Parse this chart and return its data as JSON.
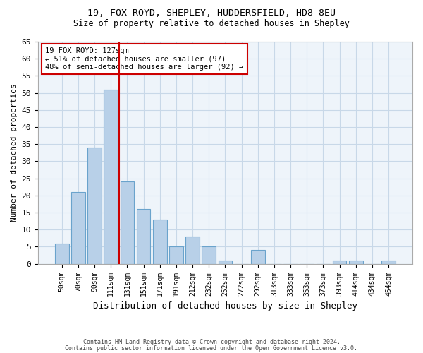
{
  "title1": "19, FOX ROYD, SHEPLEY, HUDDERSFIELD, HD8 8EU",
  "title2": "Size of property relative to detached houses in Shepley",
  "xlabel": "Distribution of detached houses by size in Shepley",
  "ylabel": "Number of detached properties",
  "bar_values": [
    6,
    21,
    34,
    51,
    24,
    16,
    13,
    5,
    8,
    5,
    1,
    0,
    4,
    0,
    0,
    0,
    0,
    1,
    1,
    0,
    1
  ],
  "categories": [
    "50sqm",
    "70sqm",
    "90sqm",
    "111sqm",
    "131sqm",
    "151sqm",
    "171sqm",
    "191sqm",
    "212sqm",
    "232sqm",
    "252sqm",
    "272sqm",
    "292sqm",
    "313sqm",
    "333sqm",
    "353sqm",
    "373sqm",
    "393sqm",
    "414sqm",
    "434sqm",
    "454sqm"
  ],
  "bar_color": "#b8d0e8",
  "bar_edge_color": "#6aa3cc",
  "grid_color": "#c8d8e8",
  "bg_color": "#eef4fa",
  "vline_x": 3.5,
  "vline_color": "#cc0000",
  "annotation_text": "19 FOX ROYD: 127sqm\n← 51% of detached houses are smaller (97)\n48% of semi-detached houses are larger (92) →",
  "annotation_box_color": "#ffffff",
  "annotation_box_edge": "#cc0000",
  "ylim": [
    0,
    65
  ],
  "yticks": [
    0,
    5,
    10,
    15,
    20,
    25,
    30,
    35,
    40,
    45,
    50,
    55,
    60,
    65
  ],
  "footer1": "Contains HM Land Registry data © Crown copyright and database right 2024.",
  "footer2": "Contains public sector information licensed under the Open Government Licence v3.0."
}
